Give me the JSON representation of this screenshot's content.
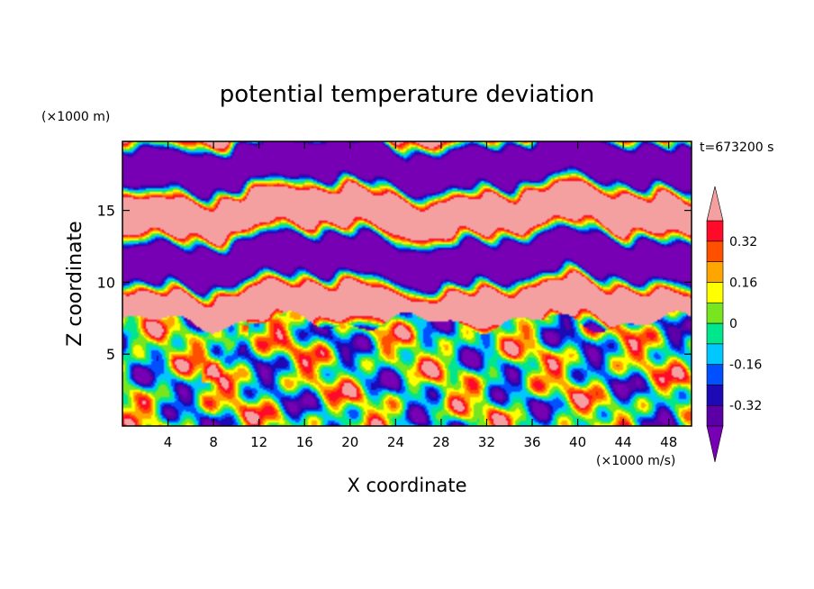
{
  "chart_data": {
    "type": "heatmap",
    "title": "potential temperature deviation",
    "xlabel": "X coordinate",
    "ylabel": "Z coordinate",
    "x_unit": "(×1000 m/s)",
    "y_unit": "(×1000 m)",
    "time_label": "t=673200 s",
    "xlim": [
      0,
      50
    ],
    "ylim": [
      0,
      19.8
    ],
    "x_ticks": [
      4,
      8,
      12,
      16,
      20,
      24,
      28,
      32,
      36,
      40,
      44,
      48
    ],
    "y_ticks": [
      5,
      10,
      15
    ],
    "colorbar": {
      "levels": [
        -0.4,
        -0.32,
        -0.24,
        -0.16,
        -0.08,
        0,
        0.08,
        0.16,
        0.24,
        0.32,
        0.4
      ],
      "colors": [
        "#5a00a6",
        "#1e0ab4",
        "#0050ff",
        "#00c8ff",
        "#00e68c",
        "#78e61e",
        "#ffff00",
        "#ffa500",
        "#ff5000",
        "#ff0a28"
      ],
      "under_color": "#7800b4",
      "over_color": "#f5a0a0",
      "tick_labels": [
        "0.32",
        "0.16",
        "0",
        "-0.16",
        "-0.32"
      ],
      "tick_values": [
        0.32,
        0.16,
        0,
        -0.16,
        -0.32
      ]
    },
    "structure": {
      "upper_region_z": [
        7.2,
        19.8
      ],
      "upper_region_description_values": "alternating bands above ~+0.4 and below ~-0.4",
      "lower_region_z": [
        0,
        7.2
      ],
      "lower_region_values": "mixed cells between -0.4 and +0.4"
    }
  }
}
